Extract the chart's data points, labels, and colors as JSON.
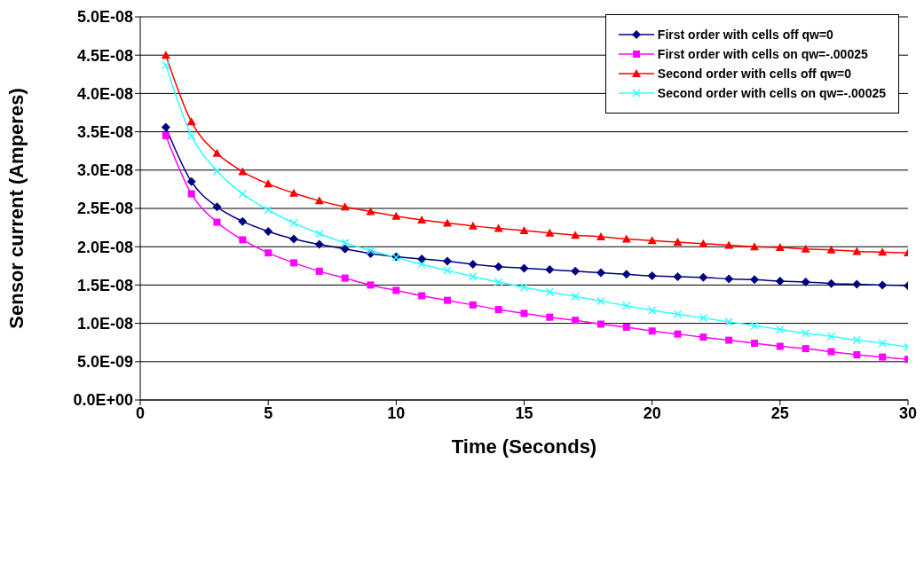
{
  "chart_data": {
    "type": "line",
    "xlabel": "Time (Seconds)",
    "ylabel": "Sensor current (Amperes)",
    "x": [
      1,
      2,
      3,
      4,
      5,
      6,
      7,
      8,
      9,
      10,
      11,
      12,
      13,
      14,
      15,
      16,
      17,
      18,
      19,
      20,
      21,
      22,
      23,
      24,
      25,
      26,
      27,
      28,
      29,
      30
    ],
    "series": [
      {
        "name": "First order with cells off qw=0",
        "color": "#000080",
        "marker": "diamond",
        "values": [
          3.56e-08,
          2.85e-08,
          2.52e-08,
          2.33e-08,
          2.2e-08,
          2.1e-08,
          2.03e-08,
          1.97e-08,
          1.91e-08,
          1.87e-08,
          1.84e-08,
          1.81e-08,
          1.77e-08,
          1.74e-08,
          1.72e-08,
          1.7e-08,
          1.68e-08,
          1.66e-08,
          1.64e-08,
          1.62e-08,
          1.61e-08,
          1.6e-08,
          1.58e-08,
          1.57e-08,
          1.55e-08,
          1.54e-08,
          1.52e-08,
          1.51e-08,
          1.5e-08,
          1.49e-08
        ]
      },
      {
        "name": "First order with cells on qw=-.00025",
        "color": "#ff00ff",
        "marker": "square",
        "values": [
          3.45e-08,
          2.69e-08,
          2.32e-08,
          2.09e-08,
          1.92e-08,
          1.79e-08,
          1.68e-08,
          1.59e-08,
          1.5e-08,
          1.43e-08,
          1.36e-08,
          1.3e-08,
          1.24e-08,
          1.18e-08,
          1.13e-08,
          1.08e-08,
          1.04e-08,
          9.9e-09,
          9.5e-09,
          9e-09,
          8.6e-09,
          8.2e-09,
          7.8e-09,
          7.4e-09,
          7e-09,
          6.7e-09,
          6.3e-09,
          5.9e-09,
          5.6e-09,
          5.3e-09
        ]
      },
      {
        "name": "Second order with cells off qw=0",
        "color": "#ff0000",
        "marker": "triangle",
        "values": [
          4.5e-08,
          3.63e-08,
          3.22e-08,
          2.98e-08,
          2.82e-08,
          2.7e-08,
          2.6e-08,
          2.52e-08,
          2.46e-08,
          2.4e-08,
          2.35e-08,
          2.31e-08,
          2.27e-08,
          2.24e-08,
          2.21e-08,
          2.18e-08,
          2.15e-08,
          2.13e-08,
          2.1e-08,
          2.08e-08,
          2.06e-08,
          2.04e-08,
          2.02e-08,
          2e-08,
          1.99e-08,
          1.97e-08,
          1.96e-08,
          1.94e-08,
          1.93e-08,
          1.92e-08
        ]
      },
      {
        "name": "Second order with cells on qw=-.00025",
        "color": "#33ffff",
        "marker": "cross",
        "values": [
          4.37e-08,
          3.45e-08,
          2.99e-08,
          2.69e-08,
          2.48e-08,
          2.31e-08,
          2.17e-08,
          2.05e-08,
          1.95e-08,
          1.86e-08,
          1.77e-08,
          1.69e-08,
          1.61e-08,
          1.54e-08,
          1.47e-08,
          1.41e-08,
          1.35e-08,
          1.29e-08,
          1.23e-08,
          1.17e-08,
          1.12e-08,
          1.07e-08,
          1.02e-08,
          9.7e-09,
          9.2e-09,
          8.7e-09,
          8.3e-09,
          7.8e-09,
          7.4e-09,
          6.9e-09
        ]
      }
    ],
    "xlim": [
      0,
      30
    ],
    "xticks": [
      0,
      5,
      10,
      15,
      20,
      25,
      30
    ],
    "ylim": [
      0,
      5e-08
    ],
    "yticks": [
      {
        "value": 0,
        "label": "0.0E+00"
      },
      {
        "value": 5e-09,
        "label": "5.0E-09"
      },
      {
        "value": 1e-08,
        "label": "1.0E-08"
      },
      {
        "value": 1.5e-08,
        "label": "1.5E-08"
      },
      {
        "value": 2e-08,
        "label": "2.0E-08"
      },
      {
        "value": 2.5e-08,
        "label": "2.5E-08"
      },
      {
        "value": 3e-08,
        "label": "3.0E-08"
      },
      {
        "value": 3.5e-08,
        "label": "3.5E-08"
      },
      {
        "value": 4e-08,
        "label": "4.0E-08"
      },
      {
        "value": 4.5e-08,
        "label": "4.5E-08"
      },
      {
        "value": 5e-08,
        "label": "5.0E-08"
      }
    ],
    "grid": "y",
    "legend": "top right",
    "line_style": "solid"
  }
}
